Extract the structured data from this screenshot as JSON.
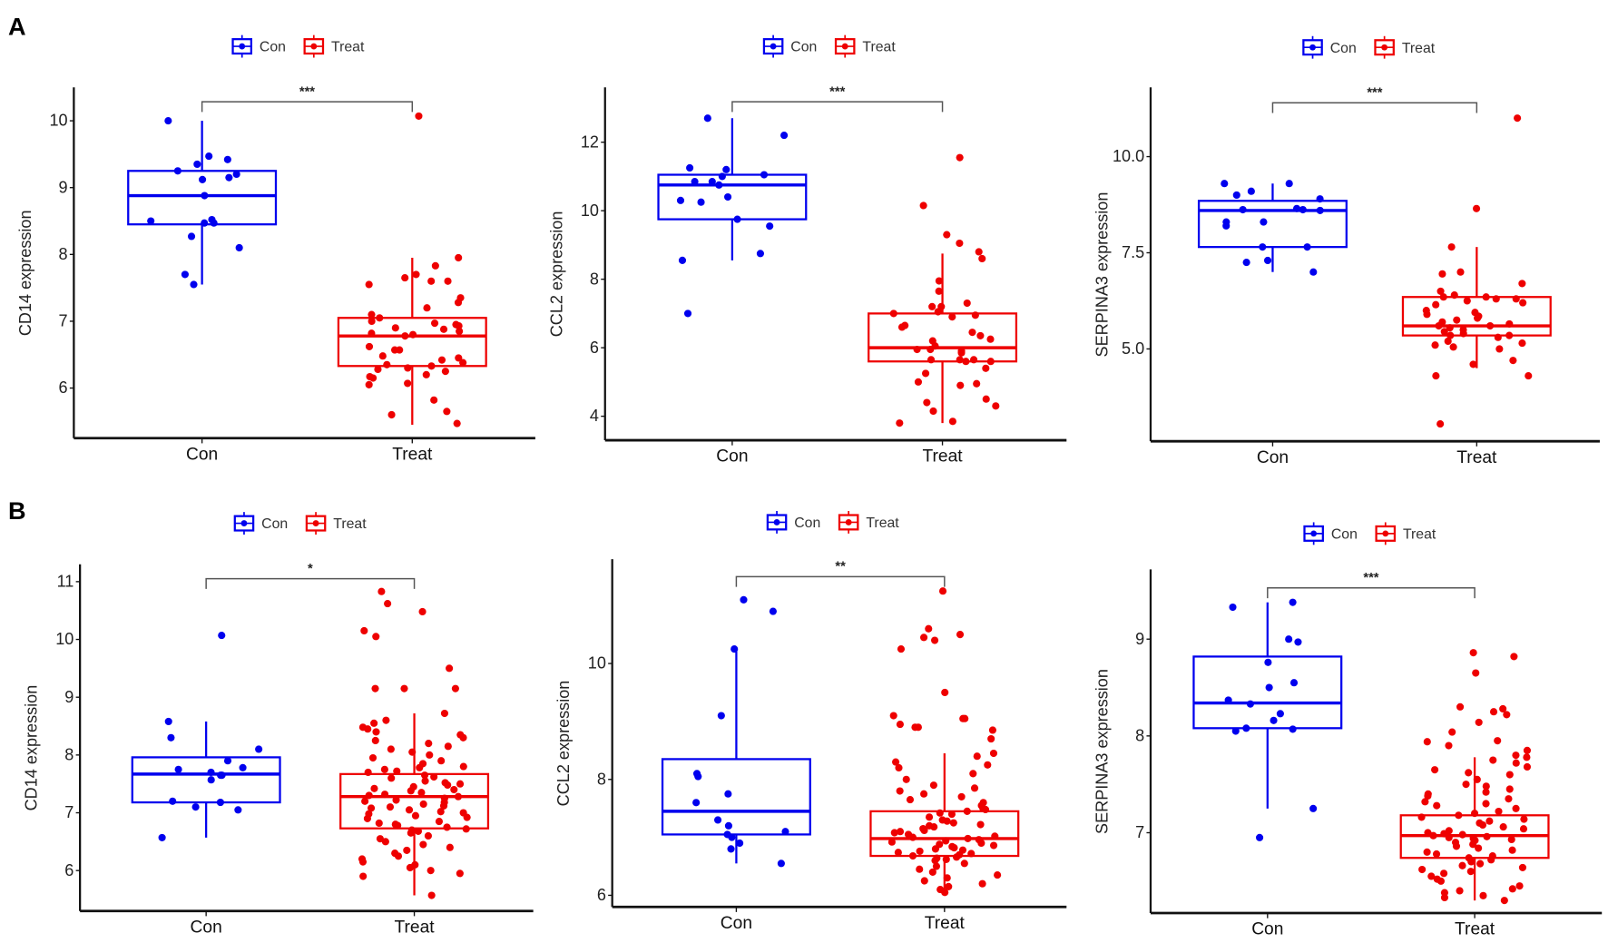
{
  "figure": {
    "panel_labels": [
      "A",
      "B"
    ]
  },
  "colors": {
    "Con": "#0000ee",
    "Treat": "#ee0000",
    "axis": "#111111",
    "bracket": "#555555"
  },
  "chart_data": [
    {
      "type": "box",
      "row": "A",
      "ylabel": "CD14 expression",
      "categories": [
        "Con",
        "Treat"
      ],
      "legend": [
        "Con",
        "Treat"
      ],
      "legend_position": "top",
      "significance": "***",
      "ylim": [
        5.25,
        10.5
      ],
      "yticks": [
        6,
        7,
        8,
        9,
        10
      ],
      "ytick_labels": [
        "6",
        "7",
        "8",
        "9",
        "10"
      ],
      "boxes": [
        {
          "group": "Con",
          "q1": 8.45,
          "median": 8.88,
          "q3": 9.25,
          "whisker_low": 7.55,
          "whisker_high": 10.0
        },
        {
          "group": "Treat",
          "q1": 6.33,
          "median": 6.78,
          "q3": 7.05,
          "whisker_low": 5.45,
          "whisker_high": 7.95
        }
      ],
      "points": {
        "Con": [
          10.0,
          9.42,
          9.47,
          9.35,
          9.25,
          9.2,
          9.15,
          9.12,
          8.88,
          8.47,
          8.5,
          8.52,
          8.47,
          8.27,
          8.1,
          7.7,
          7.55
        ],
        "Treat": [
          10.07,
          7.95,
          7.83,
          7.7,
          7.65,
          7.6,
          7.6,
          7.55,
          7.35,
          7.28,
          7.2,
          7.1,
          7.05,
          7.0,
          6.97,
          6.95,
          6.93,
          6.9,
          6.88,
          6.85,
          6.82,
          6.8,
          6.78,
          6.62,
          6.57,
          6.57,
          6.48,
          6.45,
          6.42,
          6.38,
          6.35,
          6.33,
          6.3,
          6.28,
          6.25,
          6.2,
          6.17,
          6.15,
          6.07,
          6.05,
          5.82,
          5.65,
          5.6,
          5.47
        ]
      }
    },
    {
      "type": "box",
      "row": "A",
      "ylabel": "CCL2 expression",
      "categories": [
        "Con",
        "Treat"
      ],
      "legend": [
        "Con",
        "Treat"
      ],
      "legend_position": "top",
      "significance": "***",
      "ylim": [
        3.3,
        13.6
      ],
      "yticks": [
        4,
        6,
        8,
        10,
        12
      ],
      "ytick_labels": [
        "4",
        "6",
        "8",
        "10",
        "12"
      ],
      "boxes": [
        {
          "group": "Con",
          "q1": 9.75,
          "median": 10.75,
          "q3": 11.05,
          "whisker_low": 8.55,
          "whisker_high": 12.7
        },
        {
          "group": "Treat",
          "q1": 5.6,
          "median": 6.0,
          "q3": 7.0,
          "whisker_low": 3.8,
          "whisker_high": 8.75
        }
      ],
      "points": {
        "Con": [
          12.7,
          12.2,
          11.25,
          11.2,
          11.05,
          11.0,
          10.85,
          10.85,
          10.75,
          10.4,
          10.3,
          10.25,
          9.75,
          9.55,
          8.75,
          8.55,
          7.0
        ],
        "Treat": [
          11.55,
          10.15,
          9.3,
          9.05,
          8.8,
          8.6,
          7.95,
          7.65,
          7.3,
          7.2,
          7.2,
          7.05,
          7.0,
          6.95,
          6.9,
          6.65,
          6.6,
          6.45,
          6.35,
          6.25,
          6.2,
          6.05,
          5.95,
          5.95,
          5.9,
          5.85,
          5.65,
          5.6,
          5.6,
          5.65,
          5.65,
          5.4,
          5.25,
          5.0,
          4.95,
          4.9,
          4.5,
          4.4,
          4.3,
          4.15,
          3.85,
          3.8
        ]
      }
    },
    {
      "type": "box",
      "row": "A",
      "ylabel": "SERPINA3 expression",
      "categories": [
        "Con",
        "Treat"
      ],
      "legend": [
        "Con",
        "Treat"
      ],
      "legend_position": "top",
      "significance": "***",
      "ylim": [
        2.6,
        11.8
      ],
      "yticks": [
        5,
        7.5,
        10
      ],
      "ytick_labels": [
        "5.0",
        "7.5",
        "10.0"
      ],
      "boxes": [
        {
          "group": "Con",
          "q1": 7.65,
          "median": 8.6,
          "q3": 8.85,
          "whisker_low": 7.0,
          "whisker_high": 9.3
        },
        {
          "group": "Treat",
          "q1": 5.35,
          "median": 5.6,
          "q3": 6.35,
          "whisker_low": 4.5,
          "whisker_high": 7.65
        }
      ],
      "points": {
        "Con": [
          9.3,
          9.3,
          9.1,
          9.0,
          8.9,
          8.65,
          8.62,
          8.62,
          8.6,
          8.3,
          8.3,
          8.2,
          7.65,
          7.65,
          7.3,
          7.25,
          7.0
        ],
        "Treat": [
          11.0,
          8.65,
          7.65,
          7.0,
          6.95,
          6.7,
          6.5,
          6.4,
          6.35,
          6.35,
          6.3,
          6.3,
          6.25,
          6.2,
          6.15,
          6.0,
          5.95,
          5.9,
          5.85,
          5.8,
          5.75,
          5.7,
          5.65,
          5.6,
          5.6,
          5.55,
          5.5,
          5.45,
          5.4,
          5.35,
          5.35,
          5.3,
          5.2,
          5.15,
          5.1,
          5.05,
          5.0,
          4.7,
          4.6,
          4.3,
          4.3,
          3.05
        ]
      }
    },
    {
      "type": "box",
      "row": "B",
      "ylabel": "CD14 expression",
      "categories": [
        "Con",
        "Treat"
      ],
      "legend": [
        "Con",
        "Treat"
      ],
      "legend_position": "top",
      "significance": "*",
      "ylim": [
        5.3,
        11.3
      ],
      "yticks": [
        6,
        7,
        8,
        9,
        10,
        11
      ],
      "ytick_labels": [
        "6",
        "7",
        "8",
        "9",
        "10",
        "11"
      ],
      "boxes": [
        {
          "group": "Con",
          "q1": 7.18,
          "median": 7.67,
          "q3": 7.96,
          "whisker_low": 6.57,
          "whisker_high": 8.58
        },
        {
          "group": "Treat",
          "q1": 6.73,
          "median": 7.28,
          "q3": 7.67,
          "whisker_low": 5.57,
          "whisker_high": 8.72
        }
      ],
      "points": {
        "Con": [
          10.07,
          8.58,
          8.3,
          8.1,
          7.9,
          7.78,
          7.75,
          7.7,
          7.65,
          7.65,
          7.57,
          7.2,
          7.18,
          7.1,
          7.05,
          6.57
        ],
        "Treat": [
          10.83,
          10.62,
          10.48,
          10.15,
          10.05,
          9.5,
          9.15,
          9.15,
          9.15,
          8.72,
          8.6,
          8.55,
          8.48,
          8.45,
          8.4,
          8.35,
          8.3,
          8.25,
          8.2,
          8.15,
          8.1,
          8.05,
          8.0,
          7.95,
          7.9,
          7.85,
          7.8,
          7.78,
          7.75,
          7.72,
          7.7,
          7.65,
          7.62,
          7.6,
          7.55,
          7.52,
          7.5,
          7.48,
          7.45,
          7.42,
          7.4,
          7.38,
          7.35,
          7.32,
          7.3,
          7.28,
          7.25,
          7.22,
          7.2,
          7.18,
          7.15,
          7.12,
          7.1,
          7.08,
          7.05,
          7.02,
          7.0,
          6.98,
          6.95,
          6.92,
          6.9,
          6.85,
          6.82,
          6.8,
          6.78,
          6.75,
          6.72,
          6.7,
          6.68,
          6.65,
          6.6,
          6.55,
          6.5,
          6.45,
          6.4,
          6.35,
          6.3,
          6.25,
          6.2,
          6.15,
          6.1,
          6.05,
          6.0,
          5.95,
          5.9,
          5.57
        ]
      }
    },
    {
      "type": "box",
      "row": "B",
      "ylabel": "CCL2 expression",
      "categories": [
        "Con",
        "Treat"
      ],
      "legend": [
        "Con",
        "Treat"
      ],
      "legend_position": "top",
      "significance": "**",
      "ylim": [
        5.8,
        11.8
      ],
      "yticks": [
        6,
        8,
        10
      ],
      "ytick_labels": [
        "6",
        "8",
        "10"
      ],
      "boxes": [
        {
          "group": "Con",
          "q1": 7.05,
          "median": 7.45,
          "q3": 8.35,
          "whisker_low": 6.55,
          "whisker_high": 10.25
        },
        {
          "group": "Treat",
          "q1": 6.68,
          "median": 6.98,
          "q3": 7.45,
          "whisker_low": 6.05,
          "whisker_high": 8.45
        }
      ],
      "points": {
        "Con": [
          11.1,
          10.9,
          10.25,
          9.1,
          8.1,
          8.05,
          7.75,
          7.6,
          7.3,
          7.2,
          7.1,
          7.05,
          7.0,
          6.9,
          6.8,
          6.55
        ],
        "Treat": [
          11.25,
          10.6,
          10.5,
          10.45,
          10.4,
          10.25,
          9.5,
          9.1,
          9.05,
          9.05,
          8.95,
          8.9,
          8.9,
          8.85,
          8.7,
          8.45,
          8.4,
          8.3,
          8.25,
          8.2,
          8.1,
          8.0,
          7.9,
          7.85,
          7.8,
          7.75,
          7.7,
          7.65,
          7.6,
          7.55,
          7.5,
          7.48,
          7.45,
          7.42,
          7.4,
          7.35,
          7.3,
          7.28,
          7.25,
          7.22,
          7.2,
          7.18,
          7.15,
          7.12,
          7.1,
          7.08,
          7.05,
          7.02,
          7.0,
          6.98,
          6.96,
          6.94,
          6.92,
          6.9,
          6.88,
          6.86,
          6.84,
          6.82,
          6.8,
          6.78,
          6.76,
          6.74,
          6.72,
          6.7,
          6.68,
          6.66,
          6.64,
          6.62,
          6.6,
          6.55,
          6.5,
          6.45,
          6.4,
          6.35,
          6.3,
          6.25,
          6.2,
          6.15,
          6.1,
          6.05
        ]
      }
    },
    {
      "type": "box",
      "row": "B",
      "ylabel": "SERPINA3 expression",
      "categories": [
        "Con",
        "Treat"
      ],
      "legend": [
        "Con",
        "Treat"
      ],
      "legend_position": "top",
      "significance": "***",
      "ylim": [
        6.17,
        9.72
      ],
      "yticks": [
        7,
        8,
        9
      ],
      "ytick_labels": [
        "7",
        "8",
        "9"
      ],
      "boxes": [
        {
          "group": "Con",
          "q1": 8.08,
          "median": 8.34,
          "q3": 8.82,
          "whisker_low": 7.25,
          "whisker_high": 9.38
        },
        {
          "group": "Treat",
          "q1": 6.74,
          "median": 6.97,
          "q3": 7.18,
          "whisker_low": 6.3,
          "whisker_high": 7.78
        }
      ],
      "points": {
        "Con": [
          9.38,
          9.33,
          9.0,
          8.97,
          8.76,
          8.55,
          8.5,
          8.37,
          8.33,
          8.23,
          8.16,
          8.08,
          8.07,
          8.05,
          7.25,
          6.95
        ],
        "Treat": [
          8.86,
          8.82,
          8.65,
          8.3,
          8.28,
          8.25,
          8.22,
          8.14,
          8.04,
          7.95,
          7.94,
          7.9,
          7.85,
          7.8,
          7.78,
          7.75,
          7.72,
          7.68,
          7.65,
          7.62,
          7.6,
          7.55,
          7.5,
          7.48,
          7.45,
          7.42,
          7.4,
          7.38,
          7.35,
          7.32,
          7.3,
          7.28,
          7.25,
          7.22,
          7.2,
          7.18,
          7.16,
          7.14,
          7.12,
          7.1,
          7.08,
          7.06,
          7.04,
          7.02,
          7.0,
          6.99,
          6.98,
          6.97,
          6.96,
          6.95,
          6.94,
          6.93,
          6.92,
          6.9,
          6.88,
          6.86,
          6.84,
          6.82,
          6.8,
          6.78,
          6.76,
          6.74,
          6.72,
          6.7,
          6.68,
          6.66,
          6.64,
          6.62,
          6.6,
          6.58,
          6.55,
          6.52,
          6.5,
          6.45,
          6.42,
          6.4,
          6.38,
          6.35,
          6.33,
          6.3
        ]
      }
    }
  ]
}
